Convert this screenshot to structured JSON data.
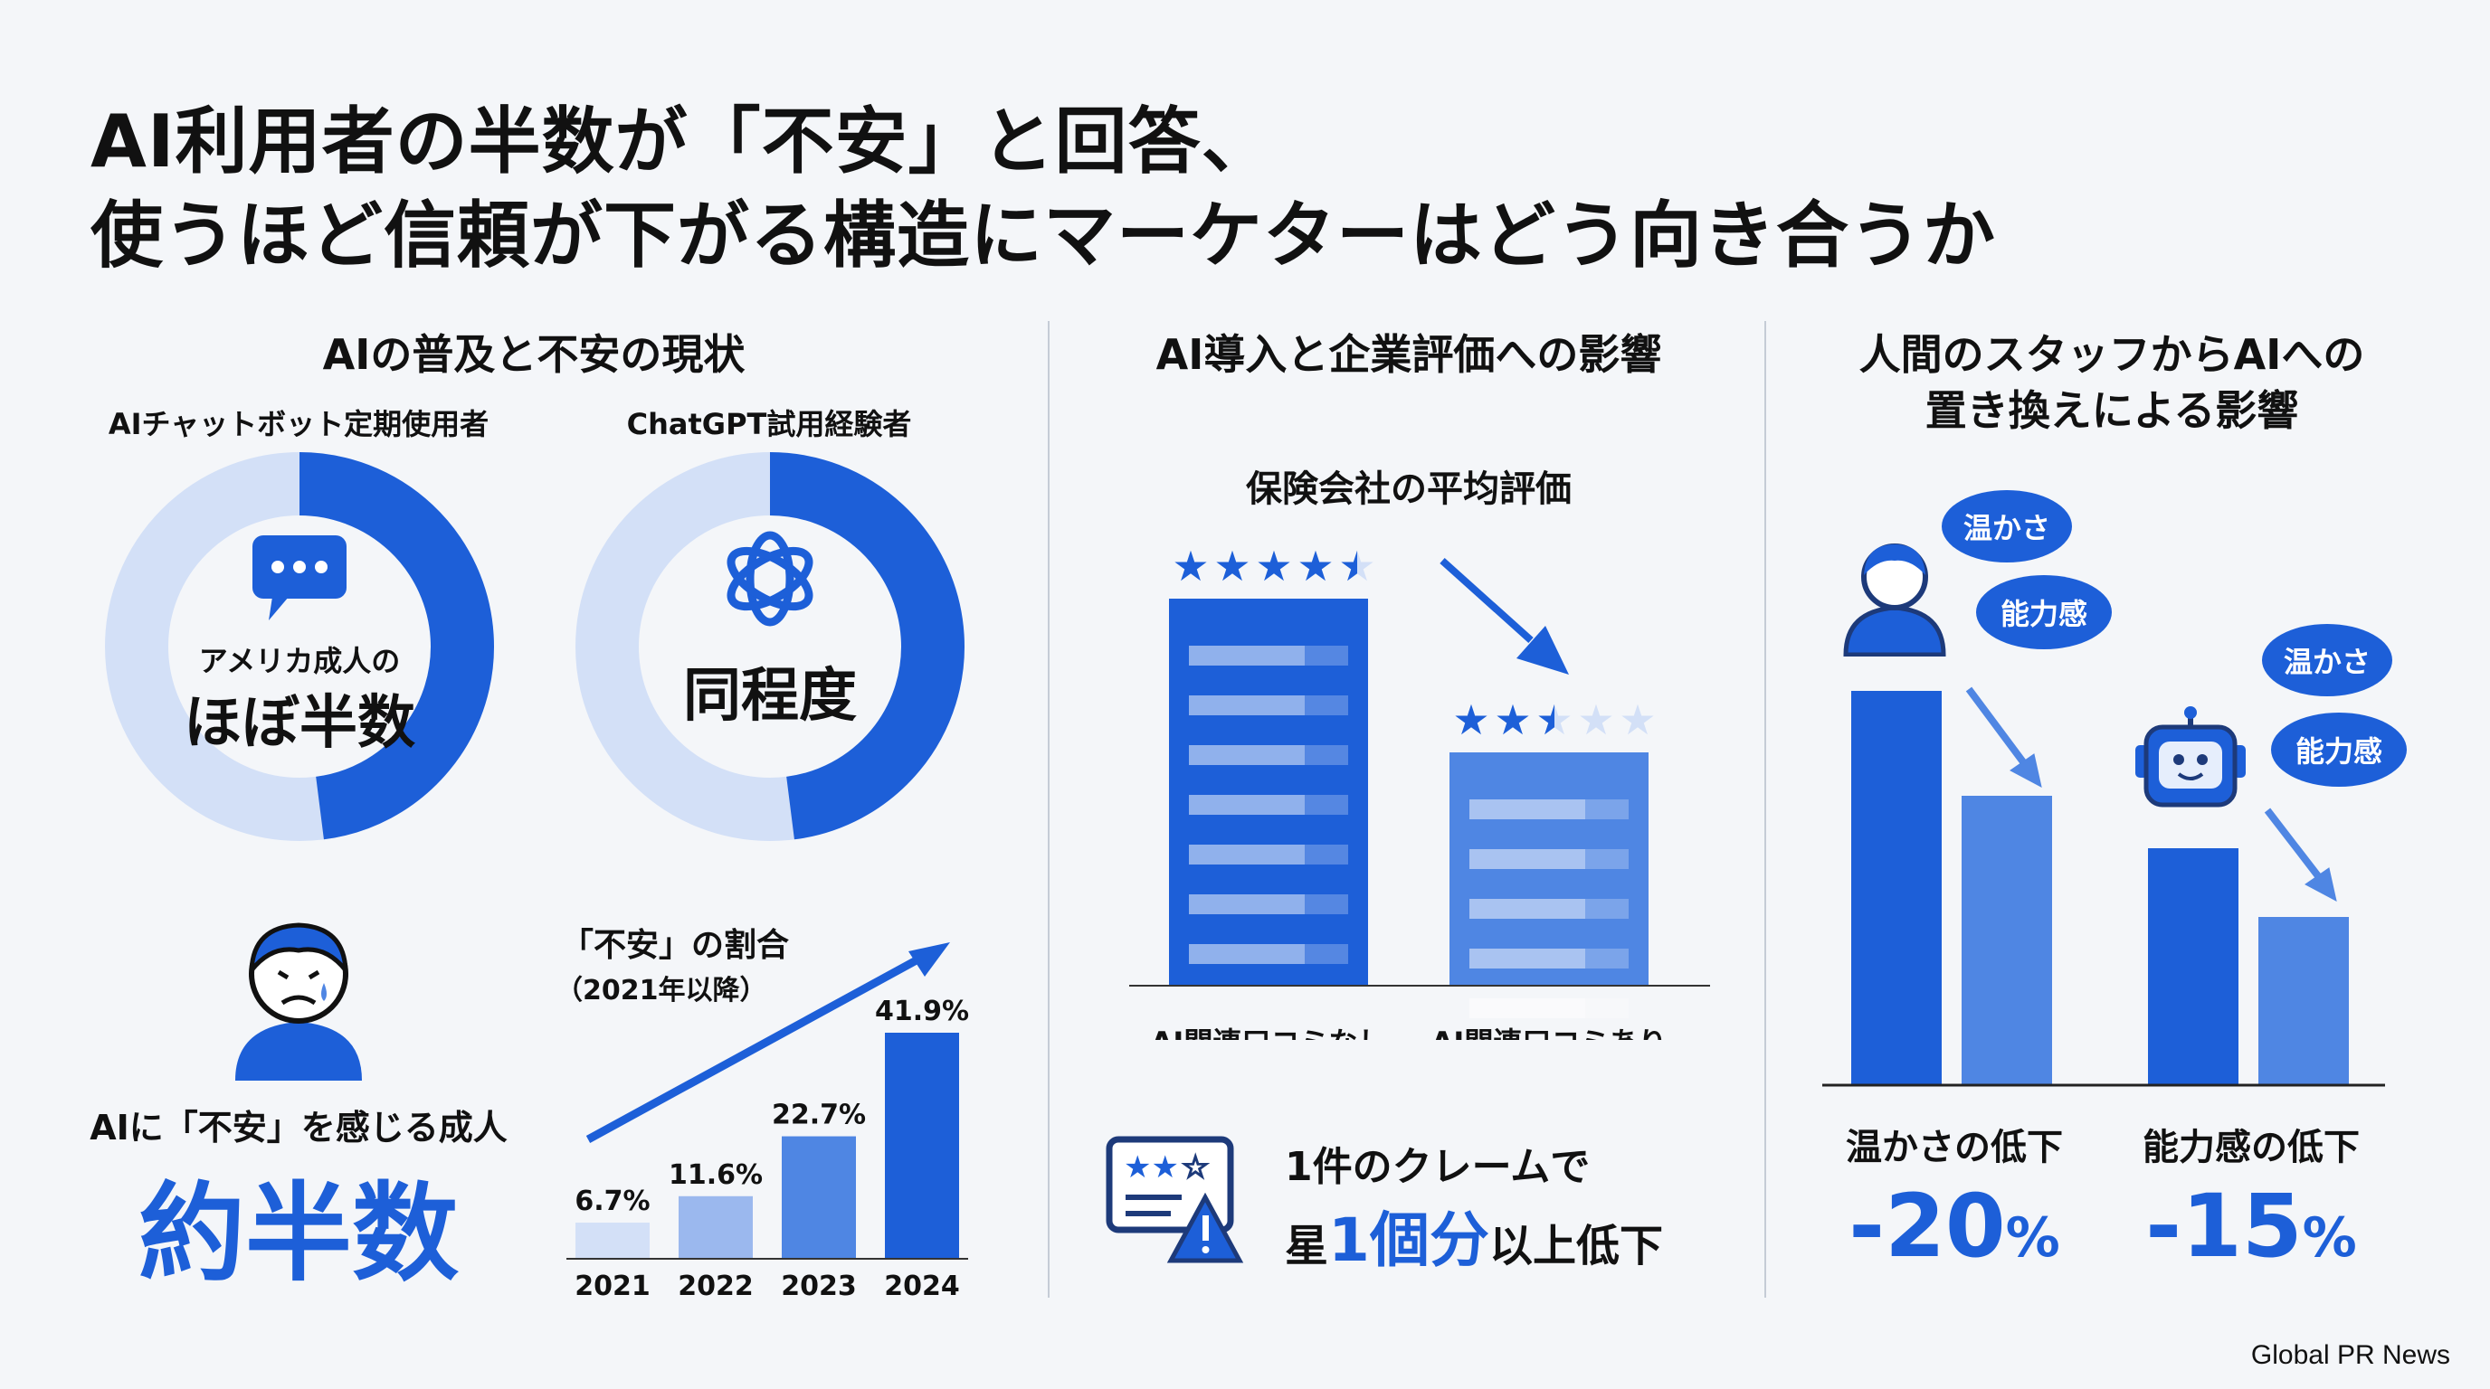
{
  "title": {
    "line1": "AI利用者の半数が「不安」と回答、",
    "line2": "使うほど信頼が下がる構造にマーケターはどう向き合うか"
  },
  "section1": {
    "heading": "AIの普及と不安の現状",
    "donut1": {
      "label": "AIチャットボット定期使用者",
      "inner_small": "アメリカ成人の",
      "inner_big": "ほぼ半数",
      "fill_fraction": 0.48
    },
    "donut2": {
      "label": "ChatGPT試用経験者",
      "inner_big": "同程度",
      "fill_fraction": 0.48
    },
    "anxiety": {
      "label": "AIに「不安」を感じる成人",
      "big": "約半数"
    },
    "bar_chart": {
      "title": "「不安」の割合",
      "subtitle": "（2021年以降）"
    }
  },
  "section2": {
    "heading": "AI導入と企業評価への影響",
    "chart_title": "保険会社の平均評価",
    "claim_line1": "1件のクレームで",
    "claim_prefix": "星",
    "claim_highlight": "1個分",
    "claim_suffix": "以上低下"
  },
  "section3": {
    "heading_line1": "人間のスタッフからAIへの",
    "heading_line2": "置き換えによる影響",
    "bubble_warmth": "温かさ",
    "bubble_competence": "能力感",
    "label_warmth": "温かさの低下",
    "label_competence": "能力感の低下",
    "value_warmth": "-20",
    "value_competence": "-15",
    "unit": "%"
  },
  "footer": {
    "source": "Global PR News"
  },
  "colors": {
    "accent": "#1d5fd8",
    "mid": "#4f86e3",
    "light": "#9bb8ee",
    "pale": "#d3e0f7"
  },
  "chart_data": [
    {
      "type": "bar",
      "title": "「不安」の割合",
      "categories": [
        "2021",
        "2022",
        "2023",
        "2024"
      ],
      "values": [
        6.7,
        11.6,
        22.7,
        41.9
      ],
      "value_labels": [
        "6.7%",
        "11.6%",
        "22.7%",
        "41.9%"
      ]
    },
    {
      "type": "bar",
      "title": "保険会社の平均評価",
      "categories": [
        "AI関連口コミなし",
        "AI関連口コミあり"
      ],
      "values": [
        4.5,
        2.5
      ],
      "star_max": 5
    },
    {
      "type": "bar",
      "categories": [
        "温かさ",
        "能力感"
      ],
      "series": [
        {
          "values": [
            100,
            80
          ]
        },
        {
          "values": [
            100,
            85
          ]
        }
      ]
    }
  ]
}
